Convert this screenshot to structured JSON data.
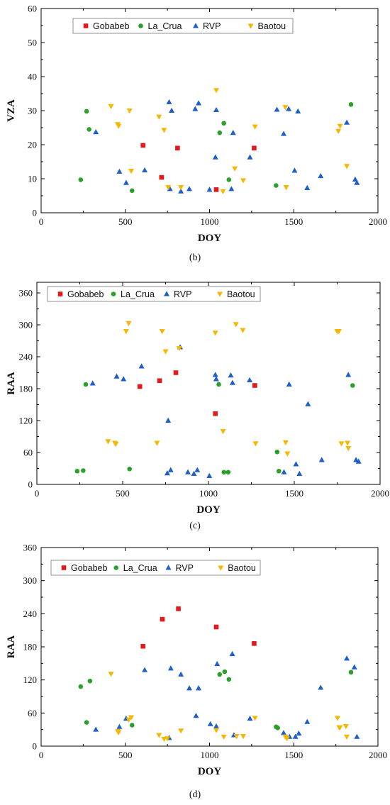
{
  "series_styles": [
    {
      "name": "Gobabeb",
      "color": "#e31a1c",
      "marker": "square"
    },
    {
      "name": "La_Crua",
      "color": "#2ca02c",
      "marker": "circle"
    },
    {
      "name": "RVP",
      "color": "#1f5fc8",
      "marker": "triangle-up"
    },
    {
      "name": "Baotou",
      "color": "#f5b700",
      "marker": "triangle-down"
    }
  ],
  "chart_data": [
    {
      "type": "scatter",
      "panel_label": "(b)",
      "xlabel": "DOY",
      "ylabel": "VZA",
      "xlim": [
        0,
        2000
      ],
      "ylim": [
        0,
        60
      ],
      "xticks": [
        0,
        500,
        1000,
        1500,
        2000
      ],
      "yticks": [
        0,
        10,
        20,
        30,
        40,
        50,
        60
      ],
      "legend": "top",
      "series": [
        {
          "name": "Gobabeb",
          "x": [
            605,
            715,
            810,
            1040,
            1265
          ],
          "y": [
            19.8,
            10.4,
            19.0,
            6.8,
            19.0
          ]
        },
        {
          "name": "La_Crua",
          "x": [
            235,
            270,
            285,
            540,
            1060,
            1085,
            1115,
            1395,
            1840
          ],
          "y": [
            9.7,
            29.8,
            24.5,
            6.5,
            23.5,
            26.3,
            9.7,
            8.0,
            31.8
          ]
        },
        {
          "name": "RVP",
          "x": [
            325,
            465,
            505,
            615,
            760,
            765,
            775,
            830,
            880,
            915,
            935,
            1000,
            1035,
            1040,
            1130,
            1140,
            1240,
            1400,
            1440,
            1470,
            1505,
            1525,
            1580,
            1660,
            1815,
            1865,
            1875
          ],
          "y": [
            23.7,
            12.1,
            8.8,
            12.5,
            32.5,
            7.0,
            30.0,
            6.3,
            7.0,
            30.5,
            32.2,
            6.8,
            16.3,
            30.2,
            7.0,
            23.5,
            16.3,
            30.3,
            23.2,
            30.5,
            12.4,
            29.8,
            7.3,
            10.8,
            26.5,
            9.8,
            8.8
          ]
        },
        {
          "name": "Baotou",
          "x": [
            415,
            455,
            460,
            525,
            535,
            700,
            730,
            755,
            830,
            1040,
            1080,
            1150,
            1200,
            1270,
            1450,
            1455,
            1765,
            1775,
            1815
          ],
          "y": [
            31.3,
            26.0,
            25.5,
            30.0,
            12.3,
            28.2,
            24.3,
            7.5,
            7.5,
            36.0,
            6.3,
            13.0,
            9.5,
            25.3,
            31.0,
            7.5,
            24.0,
            25.5,
            13.7
          ]
        }
      ]
    },
    {
      "type": "scatter",
      "panel_label": "(c)",
      "xlabel": "DOY",
      "ylabel": "RAA",
      "xlim": [
        0,
        2000
      ],
      "ylim": [
        0,
        380
      ],
      "xticks": [
        0,
        500,
        1000,
        1500,
        2000
      ],
      "yticks": [
        0,
        60,
        120,
        180,
        240,
        300,
        360
      ],
      "legend": "top",
      "series": [
        {
          "name": "Gobabeb",
          "x": [
            600,
            715,
            810,
            1040,
            1270
          ],
          "y": [
            184,
            195,
            210,
            133,
            186
          ]
        },
        {
          "name": "La_Crua",
          "x": [
            235,
            270,
            285,
            540,
            1060,
            1090,
            1115,
            1400,
            1410,
            1840
          ],
          "y": [
            25,
            26,
            188,
            29,
            188,
            23,
            23,
            61,
            25,
            186
          ]
        },
        {
          "name": "RVP",
          "x": [
            325,
            465,
            505,
            610,
            760,
            765,
            780,
            835,
            880,
            915,
            935,
            1005,
            1040,
            1045,
            1130,
            1140,
            1240,
            1440,
            1470,
            1510,
            1530,
            1580,
            1660,
            1815,
            1860,
            1875
          ],
          "y": [
            190,
            203,
            198,
            222,
            21,
            120,
            27,
            258,
            23,
            20,
            27,
            16,
            206,
            198,
            205,
            191,
            196,
            23,
            188,
            38,
            20,
            151,
            46,
            206,
            46,
            43
          ]
        },
        {
          "name": "Baotou",
          "x": [
            415,
            455,
            460,
            520,
            535,
            700,
            730,
            750,
            830,
            1040,
            1085,
            1160,
            1200,
            1275,
            1450,
            1460,
            1750,
            1760,
            1775,
            1810,
            1815
          ],
          "y": [
            81,
            78,
            76,
            288,
            303,
            78,
            288,
            250,
            256,
            285,
            100,
            301,
            290,
            77,
            79,
            58,
            288,
            288,
            77,
            78,
            68
          ]
        }
      ]
    },
    {
      "type": "scatter",
      "panel_label": "(d)",
      "xlabel": "DOY",
      "ylabel": "RAA",
      "xlim": [
        0,
        2000
      ],
      "ylim": [
        0,
        360
      ],
      "xticks": [
        0,
        500,
        1000,
        1500,
        2000
      ],
      "yticks": [
        0,
        60,
        120,
        180,
        240,
        300,
        360
      ],
      "legend": "top",
      "series": [
        {
          "name": "Gobabeb",
          "x": [
            605,
            720,
            815,
            1040,
            1265
          ],
          "y": [
            181,
            230,
            249,
            216,
            186
          ]
        },
        {
          "name": "La_Crua",
          "x": [
            235,
            270,
            290,
            540,
            1060,
            1090,
            1115,
            1395,
            1405,
            1840
          ],
          "y": [
            108,
            43,
            118,
            38,
            130,
            135,
            121,
            35,
            33,
            134
          ]
        },
        {
          "name": "RVP",
          "x": [
            325,
            465,
            505,
            615,
            760,
            770,
            830,
            880,
            920,
            935,
            1005,
            1040,
            1045,
            1135,
            1145,
            1240,
            1440,
            1475,
            1510,
            1530,
            1580,
            1660,
            1815,
            1860,
            1875
          ],
          "y": [
            30,
            35,
            50,
            138,
            15,
            141,
            130,
            105,
            55,
            105,
            40,
            36,
            149,
            167,
            20,
            50,
            24,
            17,
            17,
            23,
            44,
            106,
            159,
            143,
            17
          ]
        },
        {
          "name": "Baotou",
          "x": [
            415,
            455,
            460,
            520,
            535,
            700,
            730,
            750,
            830,
            1040,
            1085,
            1160,
            1200,
            1270,
            1450,
            1460,
            1760,
            1770,
            1775,
            1810,
            1815
          ],
          "y": [
            131,
            27,
            25,
            48,
            52,
            20,
            13,
            14,
            28,
            29,
            17,
            18,
            18,
            51,
            17,
            14,
            51,
            34,
            34,
            36,
            17
          ]
        }
      ]
    }
  ]
}
